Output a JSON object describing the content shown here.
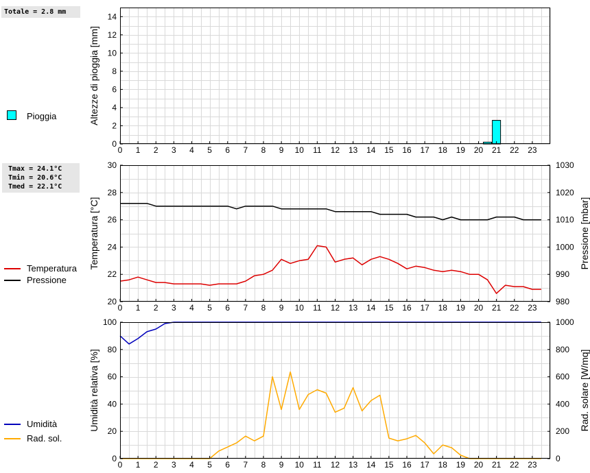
{
  "rain_panel": {
    "total_label": "Totale = 2.8 mm",
    "legend_label": "Pioggia",
    "legend_color": "#00ffff"
  },
  "temp_panel": {
    "stats_lines": [
      "Tmax = 24.1°C",
      "Tmin = 20.6°C",
      "Tmed = 22.1°C"
    ],
    "legend": [
      {
        "label": "Temperatura",
        "color": "#dd0000"
      },
      {
        "label": "Pressione",
        "color": "#000000"
      }
    ]
  },
  "humidity_panel": {
    "legend": [
      {
        "label": "Umidità",
        "color": "#0000bb"
      },
      {
        "label": "Rad. sol.",
        "color": "#ffaa00"
      }
    ]
  },
  "chart_data": [
    {
      "type": "bar",
      "ylabel": "Altezze di pioggia [mm]",
      "ylim": [
        0,
        15
      ],
      "yticks": [
        0,
        2,
        4,
        6,
        8,
        10,
        12,
        14
      ],
      "xlim": [
        0,
        24
      ],
      "xticks": [
        0,
        1,
        2,
        3,
        4,
        5,
        6,
        7,
        8,
        9,
        10,
        11,
        12,
        13,
        14,
        15,
        16,
        17,
        18,
        19,
        20,
        21,
        22,
        23
      ],
      "grid": true,
      "series": [
        {
          "name": "Pioggia",
          "color": "#00ffff",
          "bars": [
            {
              "x": 20.5,
              "value": 0.2
            },
            {
              "x": 21.0,
              "value": 2.6
            }
          ]
        }
      ]
    },
    {
      "type": "line",
      "ylabel": "Temperatura [°C]",
      "ylim": [
        20,
        30
      ],
      "yticks": [
        20,
        22,
        24,
        26,
        28,
        30
      ],
      "y2label": "Pressione [mbar]",
      "y2lim": [
        980,
        1030
      ],
      "y2ticks": [
        980,
        990,
        1000,
        1010,
        1020,
        1030
      ],
      "xlim": [
        0,
        24
      ],
      "xticks": [
        0,
        1,
        2,
        3,
        4,
        5,
        6,
        7,
        8,
        9,
        10,
        11,
        12,
        13,
        14,
        15,
        16,
        17,
        18,
        19,
        20,
        21,
        22,
        23
      ],
      "grid": true,
      "series": [
        {
          "name": "Temperatura",
          "color": "#dd0000",
          "axis": "left",
          "x": [
            0,
            0.5,
            1,
            1.5,
            2,
            2.5,
            3,
            3.5,
            4,
            4.5,
            5,
            5.5,
            6,
            6.5,
            7,
            7.5,
            8,
            8.5,
            9,
            9.5,
            10,
            10.5,
            11,
            11.5,
            12,
            12.5,
            13,
            13.5,
            14,
            14.5,
            15,
            15.5,
            16,
            16.5,
            17,
            17.5,
            18,
            18.5,
            19,
            19.5,
            20,
            20.5,
            21,
            21.5,
            22,
            22.5,
            23,
            23.5
          ],
          "values": [
            21.5,
            21.6,
            21.8,
            21.6,
            21.4,
            21.4,
            21.3,
            21.3,
            21.3,
            21.3,
            21.2,
            21.3,
            21.3,
            21.3,
            21.5,
            21.9,
            22.0,
            22.3,
            23.1,
            22.8,
            23.0,
            23.1,
            24.1,
            24.0,
            22.9,
            23.1,
            23.2,
            22.7,
            23.1,
            23.3,
            23.1,
            22.8,
            22.4,
            22.6,
            22.5,
            22.3,
            22.2,
            22.3,
            22.2,
            22.0,
            22.0,
            21.6,
            20.6,
            21.2,
            21.1,
            21.1,
            20.9,
            20.9
          ]
        },
        {
          "name": "Pressione",
          "color": "#000000",
          "axis": "right",
          "x": [
            0,
            0.5,
            1,
            1.5,
            2,
            2.5,
            3,
            3.5,
            4,
            4.5,
            5,
            5.5,
            6,
            6.5,
            7,
            7.5,
            8,
            8.5,
            9,
            9.5,
            10,
            10.5,
            11,
            11.5,
            12,
            12.5,
            13,
            13.5,
            14,
            14.5,
            15,
            15.5,
            16,
            16.5,
            17,
            17.5,
            18,
            18.5,
            19,
            19.5,
            20,
            20.5,
            21,
            21.5,
            22,
            22.5,
            23,
            23.5
          ],
          "values": [
            1016,
            1016,
            1016,
            1016,
            1015,
            1015,
            1015,
            1015,
            1015,
            1015,
            1015,
            1015,
            1015,
            1014,
            1015,
            1015,
            1015,
            1015,
            1014,
            1014,
            1014,
            1014,
            1014,
            1014,
            1013,
            1013,
            1013,
            1013,
            1013,
            1012,
            1012,
            1012,
            1012,
            1011,
            1011,
            1011,
            1010,
            1011,
            1010,
            1010,
            1010,
            1010,
            1011,
            1011,
            1011,
            1010,
            1010,
            1010
          ]
        }
      ]
    },
    {
      "type": "line",
      "ylabel": "Umidità relativa [%]",
      "ylim": [
        0,
        100
      ],
      "yticks": [
        0,
        20,
        40,
        60,
        80,
        100
      ],
      "y2label": "Rad. solare [W/mq]",
      "y2lim": [
        0,
        1000
      ],
      "y2ticks": [
        0,
        200,
        400,
        600,
        800,
        1000
      ],
      "xlim": [
        0,
        24
      ],
      "xticks": [
        0,
        1,
        2,
        3,
        4,
        5,
        6,
        7,
        8,
        9,
        10,
        11,
        12,
        13,
        14,
        15,
        16,
        17,
        18,
        19,
        20,
        21,
        22,
        23
      ],
      "grid": true,
      "series": [
        {
          "name": "Umidità",
          "color": "#0000bb",
          "axis": "left",
          "x": [
            0,
            0.5,
            1,
            1.5,
            2,
            2.5,
            3,
            3.5,
            4,
            4.5,
            5,
            5.5,
            6,
            6.5,
            7,
            7.5,
            8,
            8.5,
            9,
            9.5,
            10,
            10.5,
            11,
            11.5,
            12,
            12.5,
            13,
            13.5,
            14,
            14.5,
            15,
            15.5,
            16,
            16.5,
            17,
            17.5,
            18,
            18.5,
            19,
            19.5,
            20,
            20.5,
            21,
            21.5,
            22,
            22.5,
            23,
            23.5
          ],
          "values": [
            90,
            84,
            88,
            93,
            95,
            99,
            100,
            100,
            100,
            100,
            100,
            100,
            100,
            100,
            100,
            100,
            100,
            100,
            100,
            100,
            100,
            100,
            100,
            100,
            100,
            100,
            100,
            100,
            100,
            100,
            100,
            100,
            100,
            100,
            100,
            100,
            100,
            100,
            100,
            100,
            100,
            100,
            100,
            100,
            100,
            100,
            100,
            100
          ]
        },
        {
          "name": "Rad. sol.",
          "color": "#ffaa00",
          "axis": "right",
          "x": [
            0,
            0.5,
            1,
            1.5,
            2,
            2.5,
            3,
            3.5,
            4,
            4.5,
            5,
            5.5,
            6,
            6.5,
            7,
            7.5,
            8,
            8.5,
            9,
            9.5,
            10,
            10.5,
            11,
            11.5,
            12,
            12.5,
            13,
            13.5,
            14,
            14.5,
            15,
            15.5,
            16,
            16.5,
            17,
            17.5,
            18,
            18.5,
            19,
            19.5,
            20,
            20.5,
            21,
            21.5,
            22,
            22.5,
            23,
            23.5
          ],
          "values": [
            0,
            0,
            0,
            0,
            0,
            0,
            0,
            0,
            0,
            0,
            0,
            55,
            85,
            115,
            165,
            130,
            165,
            600,
            360,
            635,
            360,
            470,
            505,
            480,
            340,
            370,
            520,
            350,
            425,
            465,
            150,
            130,
            145,
            170,
            115,
            35,
            100,
            80,
            25,
            0,
            0,
            0,
            0,
            0,
            0,
            0,
            0,
            0
          ]
        }
      ]
    }
  ]
}
